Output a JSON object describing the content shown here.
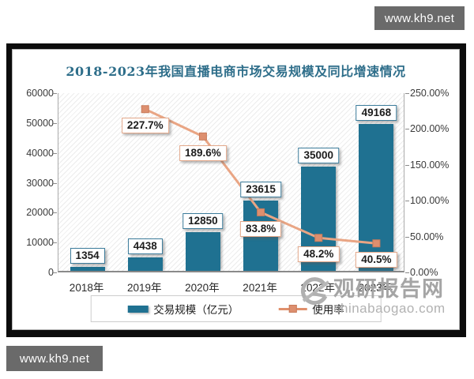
{
  "watermarks": {
    "kh9_top": "www.kh9.net",
    "kh9_bottom": "www.kh9.net",
    "site_name": "观研报告网",
    "site_url": "chinabaogao.com",
    "logo_icon": "chinabaogao-logo"
  },
  "chart_data": {
    "type": "bar+line combo",
    "title": "2018-2023年我国直播电商市场交易规模及同比增速情况",
    "categories": [
      "2018年",
      "2019年",
      "2020年",
      "2021年",
      "2022年",
      "2023年"
    ],
    "bar_series": {
      "name": "交易规模（亿元）",
      "axis": "left",
      "color": "#1f7191",
      "values": [
        1354,
        4438,
        12850,
        23615,
        35000,
        49168
      ],
      "labels": [
        "1354",
        "4438",
        "12850",
        "23615",
        "35000",
        "49168"
      ]
    },
    "line_series": {
      "name": "使用率",
      "axis": "right",
      "color": "#e9a584",
      "marker_color": "#dd8f6f",
      "values_percent": [
        null,
        227.7,
        189.6,
        83.8,
        48.2,
        40.5
      ],
      "labels": [
        null,
        "227.7%",
        "189.6%",
        "83.8%",
        "48.2%",
        "40.5%"
      ]
    },
    "left_axis": {
      "min": 0,
      "max": 60000,
      "ticks": [
        "0",
        "10000",
        "20000",
        "30000",
        "40000",
        "50000",
        "60000"
      ]
    },
    "right_axis": {
      "min": 0,
      "max": 250,
      "ticks": [
        "0.00%",
        "50.00%",
        "100.00%",
        "150.00%",
        "200.00%",
        "250.00%"
      ]
    },
    "grid": false,
    "plot_background": "diagonal-hatch",
    "legend_position": "bottom"
  }
}
